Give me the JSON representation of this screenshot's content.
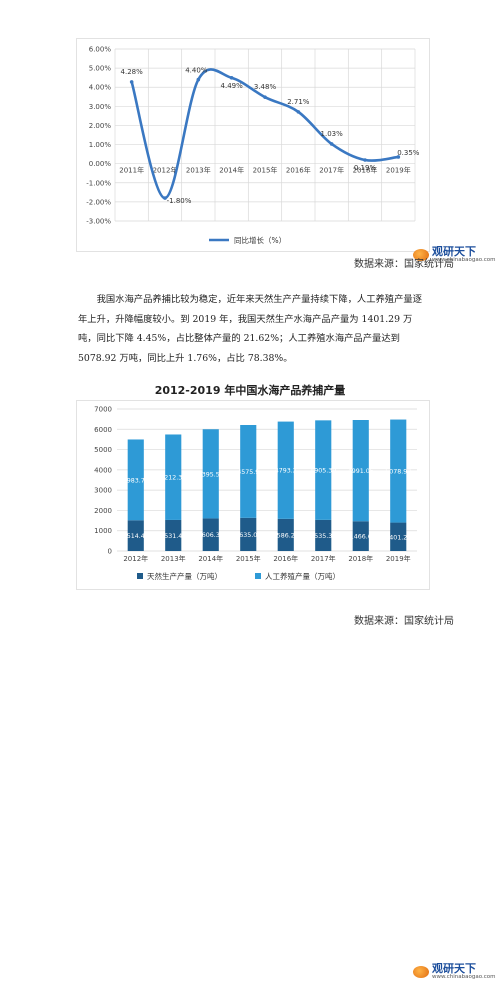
{
  "chart_data": [
    {
      "type": "line",
      "categories": [
        "2011年",
        "2012年",
        "2013年",
        "2014年",
        "2015年",
        "2016年",
        "2017年",
        "2018年",
        "2019年"
      ],
      "series": [
        {
          "name": "同比增长（%）",
          "values": [
            4.28,
            -1.8,
            4.4,
            4.49,
            3.48,
            2.71,
            1.03,
            0.19,
            0.35
          ]
        }
      ],
      "data_labels": [
        "4.28%",
        "-1.80%",
        "4.40%",
        "4.49%",
        "3.48%",
        "2.71%",
        "1.03%",
        "0.19%",
        "0.35%"
      ],
      "y_ticks": [
        "-3.00%",
        "-2.00%",
        "-1.00%",
        "0.00%",
        "1.00%",
        "2.00%",
        "3.00%",
        "4.00%",
        "5.00%",
        "6.00%"
      ],
      "ylim": [
        -3,
        6
      ],
      "grid": true,
      "legend_position": "bottom",
      "colors": {
        "line": "#3a78c2",
        "marker": "#3a78c2",
        "grid": "#d9d9d9"
      }
    },
    {
      "type": "bar",
      "stacked": true,
      "title": "2012-2019 年中国水海产品养捕产量",
      "categories": [
        "2012年",
        "2013年",
        "2014年",
        "2015年",
        "2016年",
        "2017年",
        "2018年",
        "2019年"
      ],
      "series": [
        {
          "name": "天然生产产量（万吨）",
          "values": [
            1514.43,
            1531.47,
            1606.34,
            1635.07,
            1586.28,
            1535.34,
            1466.6,
            1401.29
          ],
          "labels": [
            "1514.43",
            "1531.47",
            "1606.34",
            "1635.07",
            "1586.28",
            "1535.34",
            "1466.6",
            "1401.29"
          ],
          "color": "#1f5b8a"
        },
        {
          "name": "人工养殖产量（万吨）",
          "values": [
            3983.71,
            4212.34,
            4395.57,
            4575.9,
            4793.2,
            4905.39,
            4991.06,
            5078.92
          ],
          "labels": [
            "3983.71",
            "4212.34",
            "4395.57",
            "4575.9",
            "4793.2",
            "4905.39",
            "4991.06",
            "5078.92"
          ],
          "color": "#2e9ad6"
        }
      ],
      "y_ticks": [
        "0",
        "1000",
        "2000",
        "3000",
        "4000",
        "5000",
        "6000",
        "7000"
      ],
      "ylim": [
        0,
        7000
      ],
      "grid": true,
      "legend_position": "bottom"
    }
  ],
  "logo": {
    "main": "观研天下",
    "sub": "www.chinabaogao.com"
  },
  "source_text": "数据来源：国家统计局",
  "paragraphs": [
    "我国水海产品养捕比较为稳定，近年来天然生产产量持续下降，人工养殖产量逐年上升，升降幅度较小。到 2019 年，我国天然生产水海产品产量为 1401.29 万吨，同比下降 4.45%，占比整体产量的 21.62%；人工养殖水海产品产量达到 5078.92 万吨，同比上升 1.76%，占比 78.38%。"
  ]
}
